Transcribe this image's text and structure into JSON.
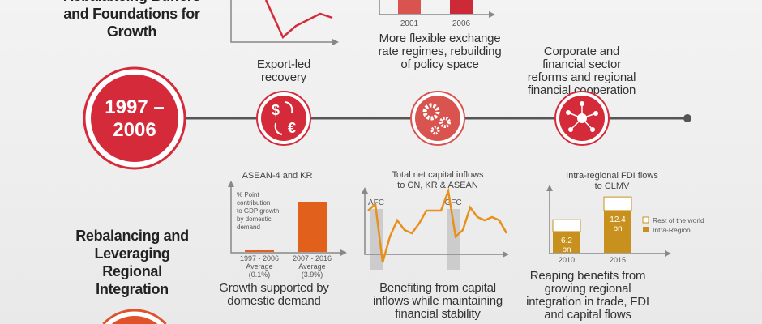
{
  "section1": {
    "title": "Rebalancing Buffers and Foundations for Growth",
    "period": "1997 –",
    "period_end": "2006",
    "items": [
      {
        "caption": "Export-led recovery",
        "icon": "currency-exchange-icon"
      },
      {
        "caption": "More flexible exchange rate regimes, rebuilding of policy space",
        "icon": "gears-icon"
      },
      {
        "caption": "Corporate and financial sector reforms and regional financial cooperation",
        "icon": "network-icon"
      }
    ],
    "bar_chart": {
      "categories": [
        "2001",
        "2006"
      ]
    }
  },
  "section2": {
    "title": "Rebalancing and Leveraging Regional Integration",
    "items": [
      {
        "caption": "Growth supported by domestic demand"
      },
      {
        "caption": "Benefiting from capital inflows while maintaining financial stability"
      },
      {
        "caption": "Reaping benefits from growing regional integration in trade, FDI and capital flows"
      }
    ]
  },
  "chart_data": [
    {
      "type": "bar",
      "title": "ASEAN-4 and KR",
      "ylabel": "% Point contribution to GDP growth by domestic demand",
      "categories": [
        "1997 - 2006 Average (0.1%)",
        "2007 - 2016 Average (3.9%)"
      ],
      "category_lines": [
        [
          "1997 - 2006",
          "Average",
          "(0.1%)"
        ],
        [
          "2007 - 2016",
          "Average",
          "(3.9%)"
        ]
      ],
      "values": [
        0.1,
        3.9
      ],
      "color": "#e0601c"
    },
    {
      "type": "line",
      "title": "Total net capital inflows to CN, KR & ASEAN",
      "annotations": [
        "AFC",
        "GFC"
      ],
      "values": [
        5,
        6,
        -3,
        1,
        3.5,
        2,
        1.5,
        3,
        5,
        5,
        5,
        8,
        1,
        2,
        5.5,
        4,
        3.5,
        4,
        3.5,
        1.5
      ],
      "color": "#e8901c"
    },
    {
      "type": "bar",
      "title": "Intra-regional FDI flows to CLMV",
      "categories": [
        "2010",
        "2015"
      ],
      "series": [
        {
          "name": "Intra-Region",
          "values": [
            6.2,
            12.4
          ],
          "labels": [
            "6.2 bn",
            "12.4 bn"
          ],
          "color": "#c8911e"
        },
        {
          "name": "Rest of the world",
          "values": [
            3.5,
            4.0
          ],
          "color": "#ffffff"
        }
      ],
      "legend": "right"
    }
  ],
  "colors": {
    "red": "#d42a3a",
    "orange": "#e0522a",
    "line": "#555555"
  }
}
